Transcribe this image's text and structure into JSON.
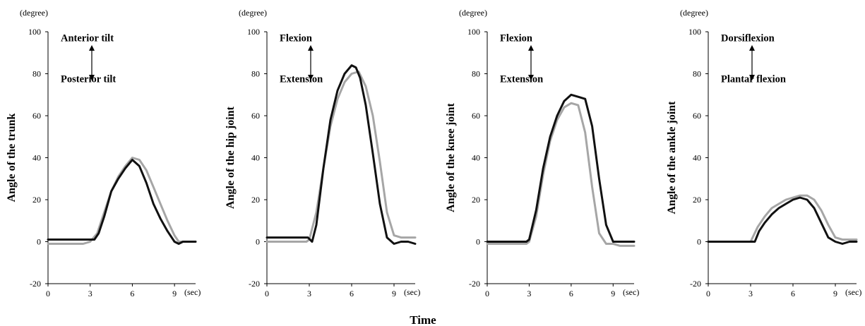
{
  "xlabel": "Time",
  "chart_data": [
    {
      "type": "line",
      "ylabel": "Angle of the trunk",
      "y_unit": "(degree)",
      "x_unit": "(sec)",
      "xlim": [
        0,
        10.5
      ],
      "ylim": [
        -20,
        100
      ],
      "xticks": [
        0,
        3,
        6,
        9
      ],
      "yticks": [
        -20,
        0,
        20,
        40,
        60,
        80,
        100
      ],
      "annotation_top": "Anterior tilt",
      "annotation_bottom": "Posterior tilt",
      "series": [
        {
          "color": "#111111",
          "x": [
            0,
            3.0,
            3.3,
            3.6,
            4.0,
            4.5,
            5.0,
            5.5,
            6.0,
            6.5,
            7.0,
            7.5,
            8.0,
            8.5,
            9.0,
            9.3,
            9.6,
            10.0,
            10.5
          ],
          "y": [
            1,
            1,
            1,
            4,
            12,
            24,
            30,
            35,
            39,
            36,
            28,
            18,
            11,
            5,
            0,
            -1,
            0,
            0,
            0
          ]
        },
        {
          "color": "#a6a6a6",
          "x": [
            0,
            2.5,
            3.0,
            3.5,
            4.0,
            4.5,
            5.0,
            5.5,
            6.0,
            6.5,
            7.0,
            7.5,
            8.0,
            8.5,
            9.0,
            9.3,
            9.6,
            10.0,
            10.5
          ],
          "y": [
            -1,
            -1,
            0,
            4,
            14,
            24,
            31,
            36,
            40,
            39,
            34,
            26,
            18,
            10,
            3,
            0,
            0,
            0,
            0
          ]
        }
      ]
    },
    {
      "type": "line",
      "ylabel": "Angle of the hip joint",
      "y_unit": "(degree)",
      "x_unit": "(sec)",
      "xlim": [
        0,
        10.5
      ],
      "ylim": [
        -20,
        100
      ],
      "xticks": [
        0,
        3,
        6,
        9
      ],
      "yticks": [
        -20,
        0,
        20,
        40,
        60,
        80,
        100
      ],
      "annotation_top": "Flexion",
      "annotation_bottom": "Extension",
      "series": [
        {
          "color": "#111111",
          "x": [
            0,
            2.9,
            3.2,
            3.5,
            4.0,
            4.5,
            5.0,
            5.5,
            6.0,
            6.3,
            6.6,
            7.0,
            7.5,
            8.0,
            8.5,
            9.0,
            9.5,
            10.0,
            10.5
          ],
          "y": [
            2,
            2,
            0,
            8,
            35,
            58,
            72,
            80,
            84,
            83,
            78,
            65,
            42,
            18,
            2,
            -1,
            0,
            0,
            -1
          ]
        },
        {
          "color": "#a6a6a6",
          "x": [
            0,
            2.8,
            3.0,
            3.5,
            4.0,
            4.5,
            5.0,
            5.5,
            6.0,
            6.5,
            7.0,
            7.5,
            8.0,
            8.5,
            9.0,
            9.5,
            10.0,
            10.5
          ],
          "y": [
            0,
            0,
            1,
            14,
            35,
            55,
            68,
            76,
            80,
            81,
            74,
            60,
            38,
            14,
            3,
            2,
            2,
            2
          ]
        }
      ]
    },
    {
      "type": "line",
      "ylabel": "Angle of the knee joint",
      "y_unit": "(degree)",
      "x_unit": "(sec)",
      "xlim": [
        0,
        10.5
      ],
      "ylim": [
        -20,
        100
      ],
      "xticks": [
        0,
        3,
        6,
        9
      ],
      "yticks": [
        -20,
        0,
        20,
        40,
        60,
        80,
        100
      ],
      "annotation_top": "Flexion",
      "annotation_bottom": "Extension",
      "series": [
        {
          "color": "#111111",
          "x": [
            0,
            2.8,
            3.0,
            3.5,
            4.0,
            4.5,
            5.0,
            5.5,
            6.0,
            6.5,
            7.0,
            7.5,
            8.0,
            8.5,
            9.0,
            9.5,
            10.0,
            10.5
          ],
          "y": [
            0,
            0,
            1,
            15,
            35,
            50,
            60,
            67,
            70,
            69,
            68,
            55,
            30,
            8,
            0,
            0,
            0,
            0
          ]
        },
        {
          "color": "#a6a6a6",
          "x": [
            0,
            2.8,
            3.0,
            3.5,
            4.0,
            4.5,
            5.0,
            5.5,
            6.0,
            6.5,
            7.0,
            7.5,
            8.0,
            8.5,
            9.0,
            9.5,
            10.0,
            10.5
          ],
          "y": [
            -1,
            -1,
            0,
            12,
            32,
            48,
            58,
            64,
            66,
            65,
            52,
            26,
            4,
            -1,
            -1,
            -2,
            -2,
            -2
          ]
        }
      ]
    },
    {
      "type": "line",
      "ylabel": "Angle of the ankle joint",
      "y_unit": "(degree)",
      "x_unit": "(sec)",
      "xlim": [
        0,
        10.5
      ],
      "ylim": [
        -20,
        100
      ],
      "xticks": [
        0,
        3,
        6,
        9
      ],
      "yticks": [
        -20,
        0,
        20,
        40,
        60,
        80,
        100
      ],
      "annotation_top": "Dorsiflexion",
      "annotation_bottom": "Plantar flexion",
      "series": [
        {
          "color": "#111111",
          "x": [
            0,
            3.0,
            3.3,
            3.6,
            4.0,
            4.5,
            5.0,
            5.5,
            6.0,
            6.5,
            7.0,
            7.5,
            8.0,
            8.5,
            9.0,
            9.5,
            10.0,
            10.5
          ],
          "y": [
            0,
            0,
            0,
            5,
            9,
            13,
            16,
            18,
            20,
            21,
            20,
            16,
            9,
            2,
            0,
            -1,
            0,
            0
          ]
        },
        {
          "color": "#a6a6a6",
          "x": [
            0,
            3.0,
            3.5,
            4.0,
            4.5,
            5.0,
            5.5,
            6.0,
            6.5,
            7.0,
            7.5,
            8.0,
            8.5,
            9.0,
            9.5,
            10.0,
            10.5
          ],
          "y": [
            0,
            0,
            7,
            12,
            16,
            18,
            20,
            21,
            22,
            22,
            20,
            15,
            8,
            2,
            1,
            1,
            1
          ]
        }
      ]
    }
  ]
}
